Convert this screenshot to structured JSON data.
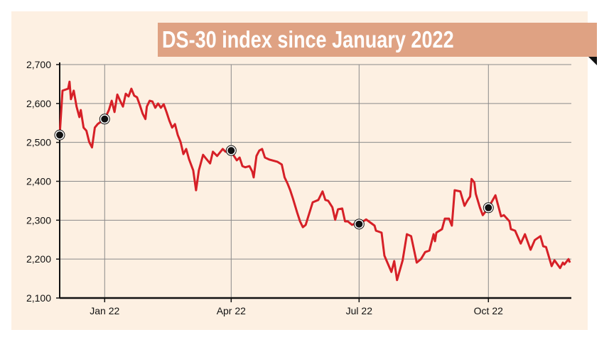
{
  "chart_data": {
    "type": "line",
    "title": "DS-30 index since January 2022",
    "xlabel": "",
    "ylabel": "",
    "x_unit": "days from 1 Jan 2022",
    "xlim": [
      -32,
      332
    ],
    "ylim": [
      2100,
      2700
    ],
    "grid": true,
    "y_ticks": [
      2100,
      2200,
      2300,
      2400,
      2500,
      2600,
      2700
    ],
    "y_tick_labels": [
      "2,100",
      "2,200",
      "2,300",
      "2,400",
      "2,500",
      "2,600",
      "2,700"
    ],
    "x_ticks": [
      0,
      90,
      181,
      273
    ],
    "x_tick_labels": [
      "Jan 22",
      "Apr 22",
      "Jul 22",
      "Oct 22"
    ],
    "series": [
      {
        "name": "DS-30",
        "color": "#d62027",
        "points": [
          [
            -32,
            2519
          ],
          [
            -30,
            2633
          ],
          [
            -26,
            2638
          ],
          [
            -25,
            2656
          ],
          [
            -24,
            2611
          ],
          [
            -22,
            2633
          ],
          [
            -20,
            2592
          ],
          [
            -18,
            2565
          ],
          [
            -17,
            2583
          ],
          [
            -15,
            2538
          ],
          [
            -13,
            2530
          ],
          [
            -11,
            2501
          ],
          [
            -9,
            2487
          ],
          [
            -7,
            2538
          ],
          [
            -5,
            2547
          ],
          [
            0,
            2560
          ],
          [
            3,
            2583
          ],
          [
            5,
            2607
          ],
          [
            7,
            2578
          ],
          [
            9,
            2623
          ],
          [
            11,
            2607
          ],
          [
            13,
            2592
          ],
          [
            15,
            2625
          ],
          [
            17,
            2618
          ],
          [
            19,
            2638
          ],
          [
            21,
            2620
          ],
          [
            23,
            2616
          ],
          [
            25,
            2596
          ],
          [
            27,
            2574
          ],
          [
            29,
            2560
          ],
          [
            30,
            2592
          ],
          [
            32,
            2607
          ],
          [
            34,
            2605
          ],
          [
            36,
            2589
          ],
          [
            38,
            2600
          ],
          [
            40,
            2589
          ],
          [
            42,
            2598
          ],
          [
            44,
            2578
          ],
          [
            46,
            2556
          ],
          [
            48,
            2538
          ],
          [
            50,
            2547
          ],
          [
            52,
            2519
          ],
          [
            54,
            2501
          ],
          [
            56,
            2470
          ],
          [
            58,
            2483
          ],
          [
            60,
            2457
          ],
          [
            63,
            2428
          ],
          [
            65,
            2377
          ],
          [
            67,
            2428
          ],
          [
            70,
            2468
          ],
          [
            72,
            2459
          ],
          [
            75,
            2446
          ],
          [
            77,
            2476
          ],
          [
            80,
            2465
          ],
          [
            82,
            2474
          ],
          [
            84,
            2483
          ],
          [
            86,
            2476
          ],
          [
            90,
            2479
          ],
          [
            92,
            2465
          ],
          [
            94,
            2454
          ],
          [
            96,
            2461
          ],
          [
            98,
            2439
          ],
          [
            100,
            2436
          ],
          [
            103,
            2439
          ],
          [
            105,
            2425
          ],
          [
            106,
            2410
          ],
          [
            108,
            2465
          ],
          [
            110,
            2479
          ],
          [
            112,
            2483
          ],
          [
            114,
            2461
          ],
          [
            117,
            2456
          ],
          [
            123,
            2450
          ],
          [
            126,
            2443
          ],
          [
            128,
            2410
          ],
          [
            130,
            2395
          ],
          [
            132,
            2377
          ],
          [
            134,
            2355
          ],
          [
            137,
            2319
          ],
          [
            139,
            2297
          ],
          [
            141,
            2282
          ],
          [
            143,
            2288
          ],
          [
            148,
            2346
          ],
          [
            152,
            2352
          ],
          [
            155,
            2374
          ],
          [
            157,
            2352
          ],
          [
            159,
            2350
          ],
          [
            162,
            2333
          ],
          [
            164,
            2301
          ],
          [
            166,
            2328
          ],
          [
            169,
            2330
          ],
          [
            171,
            2297
          ],
          [
            173,
            2297
          ],
          [
            176,
            2288
          ],
          [
            178,
            2291
          ],
          [
            181,
            2290
          ],
          [
            186,
            2302
          ],
          [
            192,
            2286
          ],
          [
            193,
            2273
          ],
          [
            197,
            2268
          ],
          [
            199,
            2209
          ],
          [
            204,
            2167
          ],
          [
            206,
            2195
          ],
          [
            208,
            2146
          ],
          [
            212,
            2197
          ],
          [
            215,
            2264
          ],
          [
            218,
            2259
          ],
          [
            222,
            2191
          ],
          [
            225,
            2200
          ],
          [
            228,
            2218
          ],
          [
            231,
            2222
          ],
          [
            234,
            2264
          ],
          [
            235,
            2246
          ],
          [
            236,
            2268
          ],
          [
            240,
            2277
          ],
          [
            242,
            2304
          ],
          [
            245,
            2304
          ],
          [
            247,
            2286
          ],
          [
            249,
            2377
          ],
          [
            253,
            2374
          ],
          [
            256,
            2337
          ],
          [
            258,
            2350
          ],
          [
            260,
            2361
          ],
          [
            261,
            2406
          ],
          [
            263,
            2397
          ],
          [
            264,
            2368
          ],
          [
            267,
            2332
          ],
          [
            269,
            2313
          ],
          [
            273,
            2332
          ],
          [
            278,
            2364
          ],
          [
            282,
            2310
          ],
          [
            284,
            2313
          ],
          [
            288,
            2297
          ],
          [
            289,
            2277
          ],
          [
            292,
            2273
          ],
          [
            296,
            2240
          ],
          [
            299,
            2264
          ],
          [
            303,
            2224
          ],
          [
            306,
            2249
          ],
          [
            310,
            2259
          ],
          [
            312,
            2233
          ],
          [
            314,
            2231
          ],
          [
            318,
            2182
          ],
          [
            320,
            2197
          ],
          [
            324,
            2177
          ],
          [
            326,
            2191
          ],
          [
            327,
            2186
          ],
          [
            330,
            2200
          ],
          [
            331,
            2191
          ]
        ]
      }
    ],
    "markers": [
      [
        -32,
        2519
      ],
      [
        0,
        2560
      ],
      [
        90,
        2479
      ],
      [
        181,
        2290
      ],
      [
        273,
        2332
      ]
    ],
    "colors": {
      "background": "#fdf0e2",
      "title_box": "#dfa283",
      "grid": "#8a8a8a",
      "axis": "#111111"
    }
  }
}
